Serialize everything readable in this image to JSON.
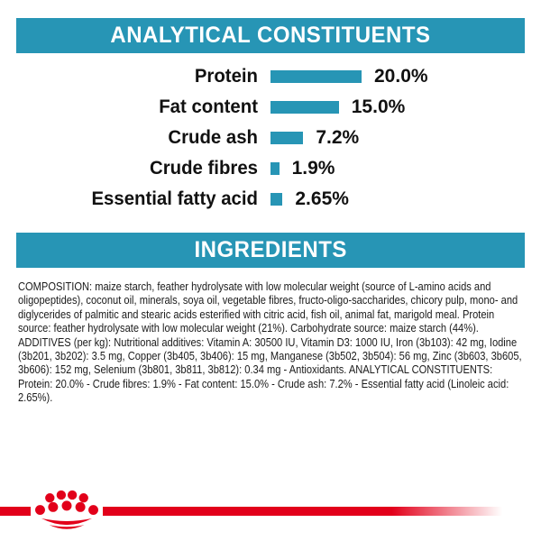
{
  "colors": {
    "teal": "#2795b5",
    "red": "#e2001a",
    "text": "#1a1a1a"
  },
  "headers": {
    "analytical": "ANALYTICAL CONSTITUENTS",
    "ingredients": "INGREDIENTS"
  },
  "chart_data": {
    "type": "bar",
    "orientation": "horizontal",
    "title": "ANALYTICAL CONSTITUENTS",
    "categories": [
      "Protein",
      "Fat content",
      "Crude ash",
      "Crude fibres",
      "Essential fatty acid"
    ],
    "values": [
      20.0,
      15.0,
      7.2,
      1.9,
      2.65
    ],
    "value_labels": [
      "20.0%",
      "15.0%",
      "7.2%",
      "1.9%",
      "2.65%"
    ],
    "xlim": [
      0,
      20
    ],
    "bar_color": "#2795b5",
    "grid": false,
    "legend": false
  },
  "ingredients": {
    "text": "COMPOSITION: maize starch, feather hydrolysate with low molecular weight (source of L-amino acids and oligopeptides), coconut oil, minerals, soya oil, vegetable fibres, fructo-oligo-saccharides, chicory pulp, mono- and diglycerides of palmitic and stearic acids esterified with citric acid, fish oil, animal fat, marigold meal. Protein source: feather hydrolysate with low molecular weight (21%). Carbohydrate source: maize starch (44%). ADDITIVES (per kg): Nutritional additives: Vitamin A: 30500 IU, Vitamin D3: 1000 IU, Iron (3b103): 42 mg, Iodine (3b201, 3b202): 3.5 mg, Copper (3b405, 3b406): 15 mg, Manganese (3b502, 3b504): 56 mg, Zinc (3b603, 3b605, 3b606): 152 mg, Selenium (3b801, 3b811, 3b812): 0.34 mg - Antioxidants. ANALYTICAL CONSTITUENTS: Protein: 20.0% - Crude fibres: 1.9% - Fat content: 15.0% - Crude ash: 7.2% - Essential fatty acid (Linoleic acid: 2.65%)."
  },
  "footer": {
    "logo": "royal-canin-crown"
  }
}
